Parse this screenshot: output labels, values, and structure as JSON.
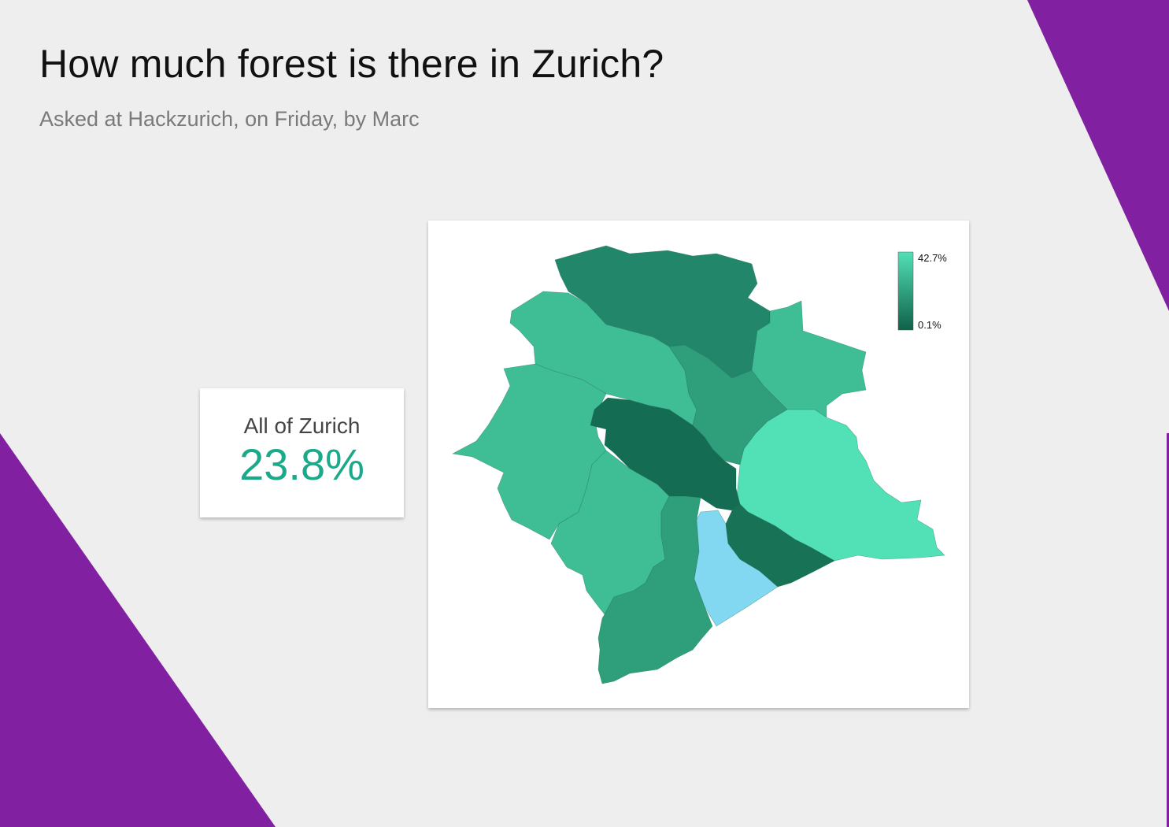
{
  "header": {
    "title": "How much forest is there in Zurich?",
    "subtitle": "Asked at Hackzurich, on Friday, by Marc"
  },
  "summary": {
    "label": "All of Zurich",
    "value": "23.8%"
  },
  "map": {
    "legend": {
      "max_label": "42.7%",
      "min_label": "0.1%",
      "max_color": "#52e0b7",
      "min_color": "#0f6148"
    },
    "districts": [
      {
        "name": "district-north",
        "color": "#22876a"
      },
      {
        "name": "district-northwest",
        "color": "#3fbd94"
      },
      {
        "name": "district-west",
        "color": "#3fbd94"
      },
      {
        "name": "district-center-north",
        "color": "#2e9e7b"
      },
      {
        "name": "district-northeast",
        "color": "#3fbd94"
      },
      {
        "name": "district-east",
        "color": "#52e0b7"
      },
      {
        "name": "district-city-center",
        "color": "#146c52"
      },
      {
        "name": "district-southwest",
        "color": "#3fbd94"
      },
      {
        "name": "district-south",
        "color": "#2e9e7b"
      },
      {
        "name": "district-lake",
        "color": "#82d8f0"
      },
      {
        "name": "district-southeast",
        "color": "#177256"
      }
    ]
  },
  "colors": {
    "background": "#eeeeee",
    "accent_purple": "#8120a0",
    "stat_value": "#1aaa8a"
  }
}
